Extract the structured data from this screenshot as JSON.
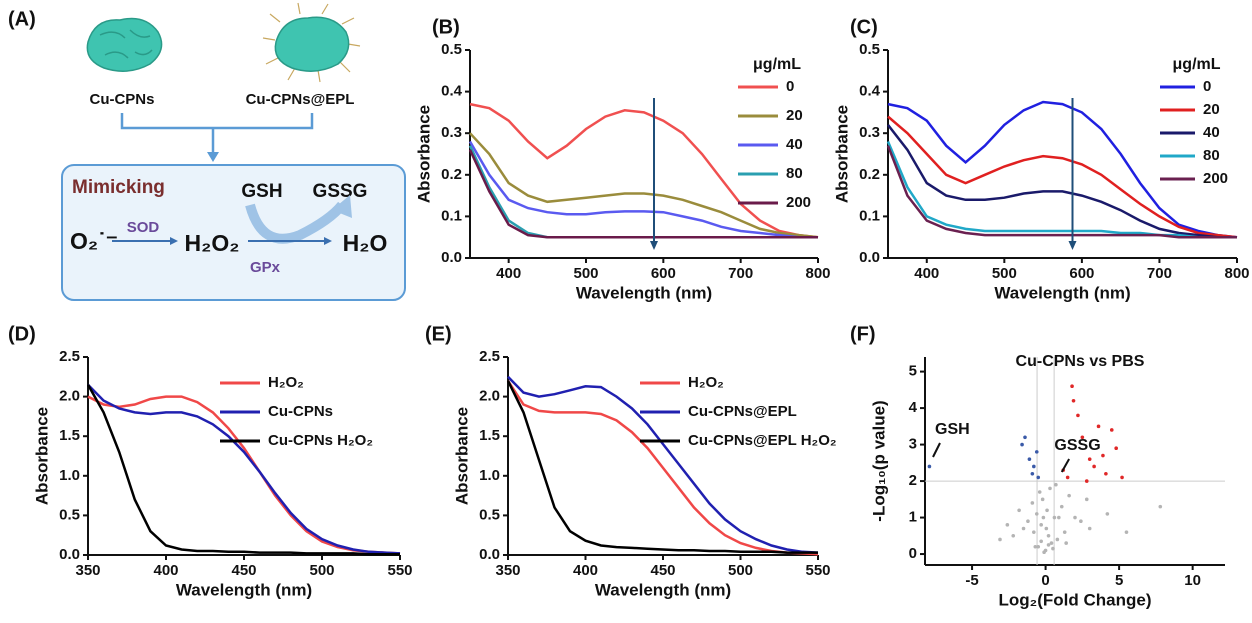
{
  "scheme": {
    "panel_label": "(A)",
    "particle_1": "Cu-CPNs",
    "particle_2": "Cu-CPNs@EPL",
    "box_title": "Mimicking",
    "gsh": "GSH",
    "gssg": "GSSG",
    "superoxide": "O₂˙⁻",
    "sod": "SOD",
    "h2o2": "H₂O₂",
    "gpx": "GPx",
    "h2o": "H₂O"
  },
  "chart_data": [
    {
      "type": "line",
      "panel_label": "(B)",
      "xlabel": "Wavelength (nm)",
      "ylabel": "Absorbance",
      "legend_title": "μg/mL",
      "legend": "upper right",
      "x": [
        350,
        375,
        400,
        425,
        450,
        475,
        500,
        525,
        550,
        575,
        600,
        625,
        650,
        675,
        700,
        725,
        750,
        775,
        800
      ],
      "xlim": [
        350,
        800
      ],
      "xticks": [
        400,
        500,
        600,
        700,
        800
      ],
      "ylim": [
        0,
        0.5
      ],
      "yticks": [
        {
          "value": 0,
          "label": "0.0"
        },
        0.1,
        0.2,
        0.3,
        0.4,
        0.5
      ],
      "series": [
        {
          "name": "0",
          "color": "#f05050",
          "values": [
            0.37,
            0.36,
            0.33,
            0.28,
            0.24,
            0.27,
            0.31,
            0.34,
            0.355,
            0.35,
            0.33,
            0.3,
            0.25,
            0.19,
            0.13,
            0.09,
            0.065,
            0.055,
            0.05
          ]
        },
        {
          "name": "20",
          "color": "#9a8c3c",
          "values": [
            0.3,
            0.25,
            0.18,
            0.15,
            0.135,
            0.14,
            0.145,
            0.15,
            0.155,
            0.155,
            0.15,
            0.14,
            0.125,
            0.11,
            0.09,
            0.07,
            0.06,
            0.055,
            0.05
          ]
        },
        {
          "name": "40",
          "color": "#5a5af0",
          "values": [
            0.28,
            0.2,
            0.14,
            0.12,
            0.11,
            0.105,
            0.105,
            0.11,
            0.112,
            0.112,
            0.11,
            0.1,
            0.09,
            0.075,
            0.065,
            0.06,
            0.055,
            0.05,
            0.05
          ]
        },
        {
          "name": "80",
          "color": "#2a9fb0",
          "values": [
            0.27,
            0.17,
            0.09,
            0.06,
            0.05,
            0.05,
            0.05,
            0.05,
            0.05,
            0.05,
            0.05,
            0.05,
            0.05,
            0.05,
            0.05,
            0.05,
            0.05,
            0.05,
            0.05
          ]
        },
        {
          "name": "200",
          "color": "#6a1b4a",
          "values": [
            0.26,
            0.16,
            0.08,
            0.055,
            0.05,
            0.05,
            0.05,
            0.05,
            0.05,
            0.05,
            0.05,
            0.05,
            0.05,
            0.05,
            0.05,
            0.05,
            0.05,
            0.05,
            0.05
          ]
        }
      ]
    },
    {
      "type": "line",
      "panel_label": "(C)",
      "xlabel": "Wavelength (nm)",
      "ylabel": "Absorbance",
      "legend_title": "μg/mL",
      "legend": "upper right",
      "x": [
        350,
        375,
        400,
        425,
        450,
        475,
        500,
        525,
        550,
        575,
        600,
        625,
        650,
        675,
        700,
        725,
        750,
        775,
        800
      ],
      "xlim": [
        350,
        800
      ],
      "xticks": [
        400,
        500,
        600,
        700,
        800
      ],
      "ylim": [
        0,
        0.5
      ],
      "yticks": [
        {
          "value": 0,
          "label": "0.0"
        },
        0.1,
        0.2,
        0.3,
        0.4,
        0.5
      ],
      "series": [
        {
          "name": "0",
          "color": "#2020e0",
          "values": [
            0.37,
            0.36,
            0.33,
            0.27,
            0.23,
            0.27,
            0.32,
            0.355,
            0.375,
            0.37,
            0.35,
            0.31,
            0.25,
            0.18,
            0.12,
            0.08,
            0.065,
            0.055,
            0.05
          ]
        },
        {
          "name": "20",
          "color": "#e02020",
          "values": [
            0.34,
            0.3,
            0.25,
            0.2,
            0.18,
            0.2,
            0.22,
            0.235,
            0.245,
            0.24,
            0.225,
            0.2,
            0.165,
            0.13,
            0.1,
            0.075,
            0.06,
            0.055,
            0.05
          ]
        },
        {
          "name": "40",
          "color": "#1a1a6a",
          "values": [
            0.32,
            0.26,
            0.18,
            0.15,
            0.14,
            0.14,
            0.145,
            0.155,
            0.16,
            0.16,
            0.15,
            0.135,
            0.115,
            0.09,
            0.07,
            0.06,
            0.055,
            0.05,
            0.05
          ]
        },
        {
          "name": "80",
          "color": "#20a8c8",
          "values": [
            0.28,
            0.17,
            0.1,
            0.08,
            0.07,
            0.065,
            0.065,
            0.065,
            0.065,
            0.065,
            0.065,
            0.065,
            0.06,
            0.06,
            0.055,
            0.055,
            0.05,
            0.05,
            0.05
          ]
        },
        {
          "name": "200",
          "color": "#6a2050",
          "values": [
            0.27,
            0.15,
            0.09,
            0.07,
            0.06,
            0.055,
            0.055,
            0.055,
            0.055,
            0.055,
            0.055,
            0.055,
            0.055,
            0.055,
            0.055,
            0.05,
            0.05,
            0.05,
            0.05
          ]
        }
      ]
    },
    {
      "type": "line",
      "panel_label": "(D)",
      "xlabel": "Wavelength (nm)",
      "ylabel": "Absorbance",
      "legend": "upper right",
      "x": [
        350,
        360,
        370,
        380,
        390,
        400,
        410,
        420,
        430,
        440,
        450,
        460,
        470,
        480,
        490,
        500,
        510,
        520,
        530,
        540,
        550
      ],
      "xlim": [
        350,
        550
      ],
      "xticks": [
        350,
        400,
        450,
        500,
        550
      ],
      "ylim": [
        0,
        2.5
      ],
      "yticks": [
        {
          "value": 0,
          "label": "0.0"
        },
        0.5,
        {
          "value": 1,
          "label": "1.0"
        },
        1.5,
        {
          "value": 2,
          "label": "2.0"
        },
        2.5
      ],
      "series": [
        {
          "name": "H₂O₂",
          "color": "#f04848",
          "values": [
            2.0,
            1.9,
            1.87,
            1.9,
            1.97,
            2.0,
            2.0,
            1.93,
            1.8,
            1.6,
            1.35,
            1.05,
            0.75,
            0.5,
            0.3,
            0.17,
            0.1,
            0.06,
            0.04,
            0.03,
            0.02
          ]
        },
        {
          "name": "Cu-CPNs",
          "color": "#2020b0",
          "values": [
            2.15,
            1.95,
            1.85,
            1.8,
            1.78,
            1.8,
            1.8,
            1.75,
            1.65,
            1.5,
            1.3,
            1.05,
            0.78,
            0.53,
            0.33,
            0.2,
            0.12,
            0.07,
            0.04,
            0.03,
            0.02
          ]
        },
        {
          "name": "Cu-CPNs H₂O₂",
          "color": "#000000",
          "values": [
            2.15,
            1.8,
            1.3,
            0.7,
            0.3,
            0.12,
            0.07,
            0.05,
            0.05,
            0.04,
            0.04,
            0.03,
            0.03,
            0.03,
            0.02,
            0.02,
            0.02,
            0.02,
            0.01,
            0.01,
            0.01
          ]
        }
      ]
    },
    {
      "type": "line",
      "panel_label": "(E)",
      "xlabel": "Wavelength (nm)",
      "ylabel": "Absorbance",
      "legend": "upper right",
      "x": [
        350,
        360,
        370,
        380,
        390,
        400,
        410,
        420,
        430,
        440,
        450,
        460,
        470,
        480,
        490,
        500,
        510,
        520,
        530,
        540,
        550
      ],
      "xlim": [
        350,
        550
      ],
      "xticks": [
        350,
        400,
        450,
        500,
        550
      ],
      "ylim": [
        0,
        2.5
      ],
      "yticks": [
        {
          "value": 0,
          "label": "0.0"
        },
        0.5,
        {
          "value": 1,
          "label": "1.0"
        },
        1.5,
        {
          "value": 2,
          "label": "2.0"
        },
        2.5
      ],
      "series": [
        {
          "name": "H₂O₂",
          "color": "#f04848",
          "values": [
            2.2,
            1.9,
            1.82,
            1.8,
            1.8,
            1.8,
            1.78,
            1.7,
            1.55,
            1.35,
            1.1,
            0.85,
            0.6,
            0.4,
            0.25,
            0.15,
            0.09,
            0.05,
            0.03,
            0.02,
            0.01
          ]
        },
        {
          "name": "Cu-CPNs@EPL",
          "color": "#2020b0",
          "values": [
            2.25,
            2.05,
            2.0,
            2.03,
            2.08,
            2.13,
            2.12,
            2.0,
            1.85,
            1.65,
            1.4,
            1.15,
            0.9,
            0.65,
            0.45,
            0.3,
            0.2,
            0.12,
            0.07,
            0.04,
            0.03
          ]
        },
        {
          "name": "Cu-CPNs@EPL H₂O₂",
          "color": "#000000",
          "values": [
            2.2,
            1.8,
            1.2,
            0.6,
            0.3,
            0.18,
            0.12,
            0.1,
            0.09,
            0.08,
            0.07,
            0.06,
            0.06,
            0.05,
            0.05,
            0.04,
            0.04,
            0.04,
            0.03,
            0.03,
            0.03
          ]
        }
      ]
    },
    {
      "type": "scatter",
      "panel_label": "(F)",
      "title": "Cu-CPNs vs PBS",
      "xlabel": "Log₂(Fold Change)",
      "ylabel": "-Log₁₀(p value)",
      "xlim": [
        -8.2,
        12.2
      ],
      "xticks": [
        -5,
        0,
        5,
        10
      ],
      "ylim": [
        -0.3,
        5.4
      ],
      "yticks": [
        0,
        1,
        2,
        3,
        4,
        5
      ],
      "thresholds": {
        "x": [
          -0.58,
          0.58
        ],
        "y": 2
      },
      "annotations": [
        "GSH",
        "GSSG"
      ],
      "series": [
        {
          "color": "#b4b4b4",
          "x": [
            -0.5,
            0.2,
            -0.3,
            0.1,
            0.4,
            -0.8,
            0.6,
            -0.2,
            0.3,
            0.0,
            -1.2,
            1.1,
            -0.6,
            0.8,
            -1.5,
            1.6,
            -2.2,
            2.4,
            -0.1,
            0.5,
            -0.4,
            0.7,
            -0.9,
            1.3,
            -1.8,
            2.0,
            3.0,
            -3.1,
            4.2,
            5.5,
            7.8,
            -0.3,
            0.2,
            0.9,
            -0.7,
            1.4,
            0.05,
            -0.15,
            2.8,
            -2.6
          ],
          "y": [
            0.2,
            0.5,
            0.8,
            1.2,
            0.3,
            0.6,
            1.0,
            1.5,
            1.8,
            0.1,
            0.9,
            1.3,
            1.1,
            0.4,
            0.7,
            1.6,
            0.5,
            0.9,
            0.05,
            0.15,
            1.7,
            1.9,
            1.4,
            0.6,
            1.2,
            1.0,
            0.7,
            0.4,
            1.1,
            0.6,
            1.3,
            0.35,
            0.25,
            1.0,
            0.2,
            0.3,
            0.7,
            1.0,
            1.5,
            0.8
          ]
        },
        {
          "color": "#e02828",
          "x": [
            1.2,
            1.8,
            2.5,
            3.0,
            3.6,
            4.1,
            4.8,
            5.2,
            2.2,
            1.5,
            3.3,
            2.8,
            4.5,
            1.9,
            3.9
          ],
          "y": [
            2.3,
            4.6,
            3.2,
            2.6,
            3.5,
            2.2,
            2.9,
            2.1,
            3.8,
            2.1,
            2.4,
            2.0,
            3.4,
            4.2,
            2.7
          ]
        },
        {
          "color": "#3a5aa8",
          "x": [
            -0.6,
            -0.8,
            -1.1,
            -1.4,
            -0.5,
            -0.9,
            -1.6,
            -7.9
          ],
          "y": [
            2.8,
            2.4,
            2.6,
            3.2,
            2.1,
            2.2,
            3.0,
            2.4
          ]
        }
      ]
    }
  ]
}
